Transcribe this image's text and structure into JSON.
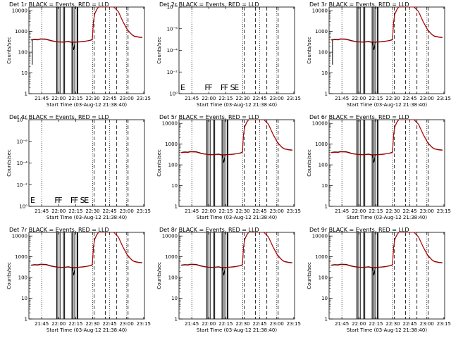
{
  "figure": {
    "panels": [
      {
        "title": "Det 1r  BLACK = Events, RED = LLD",
        "empty": false
      },
      {
        "title": "Det 2r  BLACK = Events, RED = LLD",
        "empty": true
      },
      {
        "title": "Det 3r  BLACK = Events, RED = LLD",
        "empty": false
      },
      {
        "title": "Det 4r  BLACK = Events, RED = LLD",
        "empty": true
      },
      {
        "title": "Det 5r  BLACK = Events, RED = LLD",
        "empty": false
      },
      {
        "title": "Det 6r  BLACK = Events, RED = LLD",
        "empty": false
      },
      {
        "title": "Det 7r  BLACK = Events, RED = LLD",
        "empty": false
      },
      {
        "title": "Det 8r  BLACK = Events, RED = LLD",
        "empty": false
      },
      {
        "title": "Det 9r  BLACK = Events, RED = LLD",
        "empty": false
      }
    ]
  },
  "chart_data": {
    "type": "line",
    "xlabel": "Start Time (03-Aug-12 21:38:40)",
    "ylabel": "Counts/sec",
    "x_ticks": [
      "21:45",
      "22:00",
      "22:15",
      "22:30",
      "22:45",
      "23:00",
      "23:15"
    ],
    "y_ticks_log": [
      "1",
      "10",
      "100",
      "1000",
      "10000"
    ],
    "y_ticks_empty": [
      "10⁰",
      "10⁻²",
      "10⁻⁴",
      "10⁻⁶",
      "10⁻⁸"
    ],
    "xlim_minutes": [
      -5,
      97
    ],
    "ylim_log": [
      1,
      15000
    ],
    "series_colors": {
      "events": "#000000",
      "lld": "#cc0000"
    },
    "event_markers": [
      "E",
      "F",
      "F",
      "F",
      "F",
      "S",
      "E"
    ],
    "dotted_lines_min": [
      6.3,
      51.3,
      66.3,
      81.3
    ],
    "dashed_lines_min": [
      51.3,
      61.3,
      71.3,
      81.3
    ],
    "solid_vlines_min": [
      19.5,
      20.5,
      22.5,
      25.5,
      26.5,
      33,
      34,
      35.5,
      37.5,
      38.2
    ],
    "events_series": {
      "x": [
        -3,
        0,
        3,
        5,
        10,
        15,
        20,
        25,
        30,
        33,
        36,
        40,
        43,
        46,
        49.5,
        51,
        52,
        53,
        55,
        56.5,
        58,
        60,
        62,
        64,
        66,
        68,
        70,
        74,
        78,
        82,
        86,
        88,
        92,
        95
      ],
      "y": [
        400,
        420,
        410,
        440,
        430,
        360,
        320,
        310,
        330,
        300,
        310,
        320,
        330,
        350,
        380,
        420,
        3000,
        7000,
        12000,
        15000,
        15000,
        15000,
        15000,
        15000,
        15000,
        15000,
        15000,
        9000,
        3000,
        1200,
        700,
        600,
        540,
        520
      ]
    },
    "lld_series": {
      "x": [
        -3,
        0,
        3,
        5,
        10,
        15,
        20,
        25,
        30,
        33,
        36,
        40,
        43,
        46,
        49.5,
        51,
        52,
        53,
        55,
        56.5,
        58,
        60,
        62,
        64,
        66,
        68,
        70,
        74,
        78,
        82,
        86,
        88,
        92,
        95
      ],
      "y": [
        380,
        400,
        390,
        420,
        410,
        345,
        310,
        300,
        315,
        290,
        300,
        310,
        320,
        340,
        370,
        400,
        2800,
        6800,
        11500,
        15000,
        15000,
        15000,
        15000,
        15000,
        15000,
        15000,
        15000,
        8800,
        2900,
        1150,
        680,
        580,
        520,
        500
      ]
    }
  }
}
